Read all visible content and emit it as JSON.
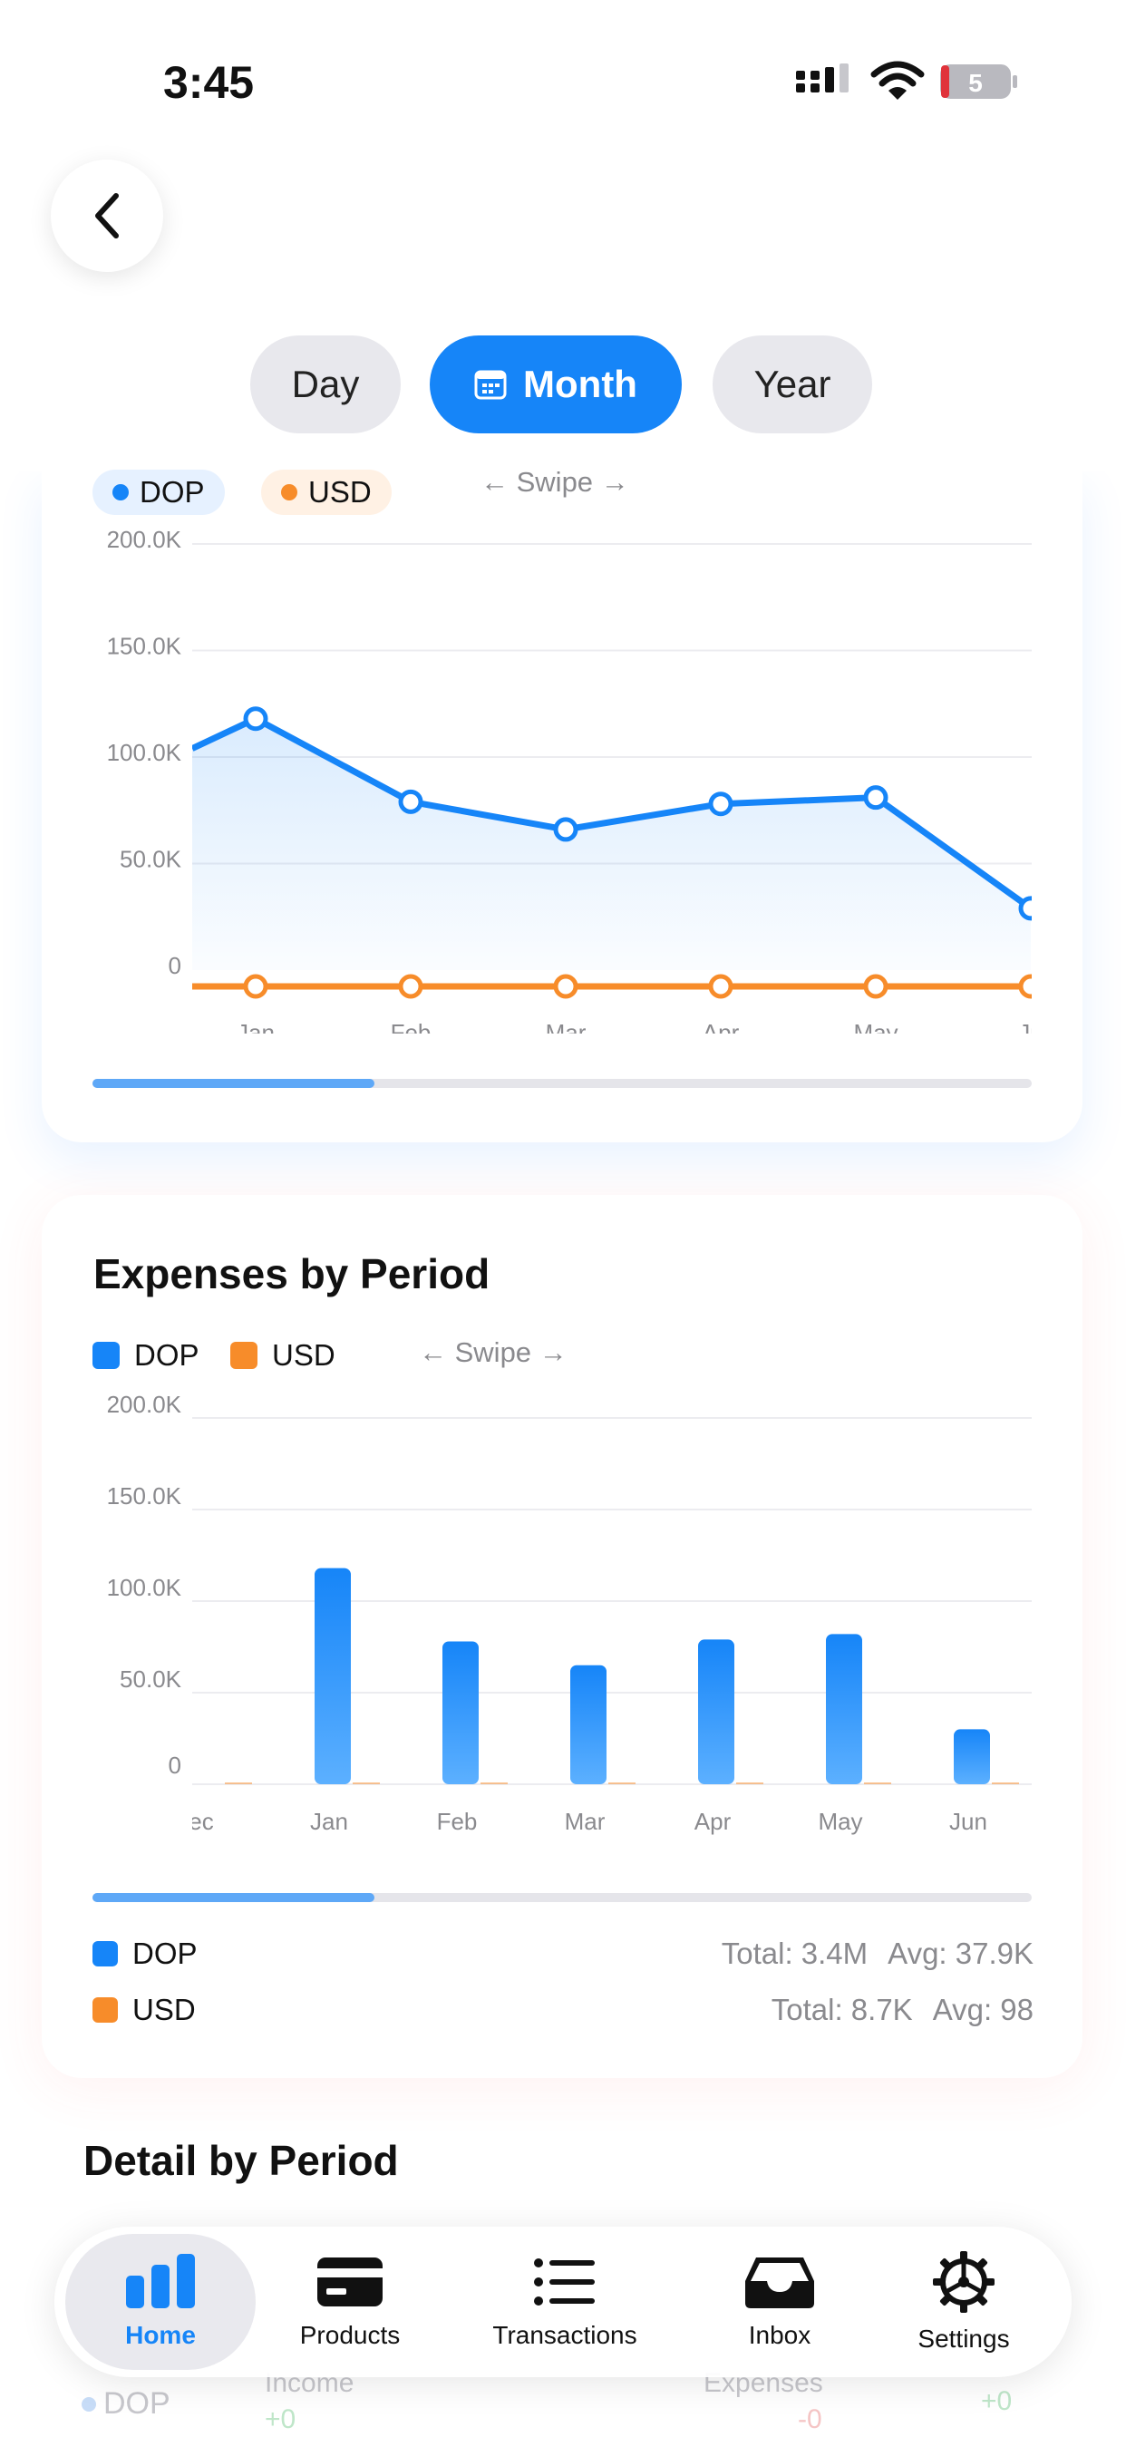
{
  "status_bar": {
    "time": "3:45",
    "battery": "5"
  },
  "header": {
    "back_icon": "chevron-left-icon",
    "segments": [
      {
        "label": "Day",
        "selected": false
      },
      {
        "label": "Month",
        "selected": true,
        "icon": "calendar-icon"
      },
      {
        "label": "Year",
        "selected": false
      }
    ]
  },
  "income_card": {
    "legend": [
      {
        "label": "DOP",
        "color": "#1685f8"
      },
      {
        "label": "USD",
        "color": "#f78c2a"
      }
    ],
    "swipe_hint": "← Swipe →",
    "scroll_position": 0.3
  },
  "expenses_card": {
    "title": "Expenses by Period",
    "legend": [
      {
        "label": "DOP",
        "color": "#1685f8"
      },
      {
        "label": "USD",
        "color": "#f78c2a"
      }
    ],
    "swipe_hint": "← Swipe →",
    "scroll_position": 0.3,
    "summary": [
      {
        "label": "DOP",
        "total": "Total: 3.4M",
        "avg": "Avg: 37.9K",
        "color": "#1685f8"
      },
      {
        "label": "USD",
        "total": "Total: 8.7K",
        "avg": "Avg: 98",
        "color": "#f78c2a"
      }
    ]
  },
  "detail_section": {
    "title": "Detail by Period"
  },
  "ghost_row": {
    "currency": "DOP",
    "income_label": "Income",
    "expenses_label": "Expenses",
    "income_value": "+0",
    "expenses_value": "-0",
    "net_value": "+0"
  },
  "tab_bar": [
    {
      "label": "Home",
      "icon": "bar-chart-icon",
      "active": true
    },
    {
      "label": "Products",
      "icon": "card-icon",
      "active": false
    },
    {
      "label": "Transactions",
      "icon": "list-icon",
      "active": false
    },
    {
      "label": "Inbox",
      "icon": "inbox-icon",
      "active": false
    },
    {
      "label": "Settings",
      "icon": "gear-icon",
      "active": false
    }
  ],
  "chart_data": [
    {
      "type": "line",
      "x": [
        "Jan",
        "Feb",
        "Mar",
        "Apr",
        "May",
        "Ju"
      ],
      "series": [
        {
          "name": "DOP",
          "color": "#1685f8",
          "values": [
            118000,
            79000,
            66000,
            78000,
            81000,
            29000
          ]
        },
        {
          "name": "USD",
          "color": "#f78c2a",
          "values": [
            0,
            0,
            0,
            0,
            0,
            0
          ]
        }
      ],
      "yticks": [
        "200.0K",
        "150.0K",
        "100.0K",
        "50.0K",
        "0"
      ],
      "ylim": [
        0,
        200000
      ],
      "grid": true,
      "area_fill": true
    },
    {
      "type": "bar",
      "categories": [
        "ec",
        "Jan",
        "Feb",
        "Mar",
        "Apr",
        "May",
        "Jun"
      ],
      "series": [
        {
          "name": "DOP",
          "color": "#1685f8",
          "values": [
            0,
            118000,
            78000,
            65000,
            79000,
            82000,
            30000
          ]
        },
        {
          "name": "USD",
          "color": "#f78c2a",
          "values": [
            0,
            0,
            0,
            0,
            0,
            0,
            0
          ]
        }
      ],
      "yticks": [
        "200.0K",
        "150.0K",
        "100.0K",
        "50.0K",
        "0"
      ],
      "ylim": [
        0,
        200000
      ],
      "grid": true
    }
  ]
}
